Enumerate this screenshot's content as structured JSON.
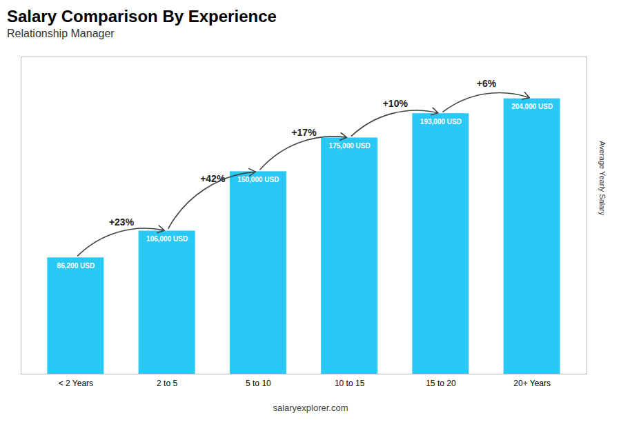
{
  "chart_data": {
    "type": "bar",
    "title": "Salary Comparison By Experience",
    "subtitle": "Relationship Manager",
    "categories": [
      "< 2 Years",
      "2 to 5",
      "5 to 10",
      "10 to 15",
      "15 to 20",
      "20+ Years"
    ],
    "values": [
      86200,
      106000,
      150000,
      175000,
      193000,
      204000
    ],
    "value_labels": [
      "86,200 USD",
      "106,000 USD",
      "150,000 USD",
      "175,000 USD",
      "193,000 USD",
      "204,000 USD"
    ],
    "data_labels": true,
    "color": "#2ac8f5",
    "ylim": [
      0,
      235000
    ],
    "ylabel": "Average Yearly Salary",
    "tick_labels": "x",
    "annotations": [
      {
        "text": "+23%",
        "from": "< 2 Years",
        "to": "2 to 5"
      },
      {
        "text": "+42%",
        "from": "2 to 5",
        "to": "5 to 10"
      },
      {
        "text": "+17%",
        "from": "5 to 10",
        "to": "10 to 15"
      },
      {
        "text": "+10%",
        "from": "10 to 15",
        "to": "15 to 20"
      },
      {
        "text": "+6%",
        "from": "15 to 20",
        "to": "20+ Years"
      }
    ],
    "source": "salaryexplorer.com"
  }
}
